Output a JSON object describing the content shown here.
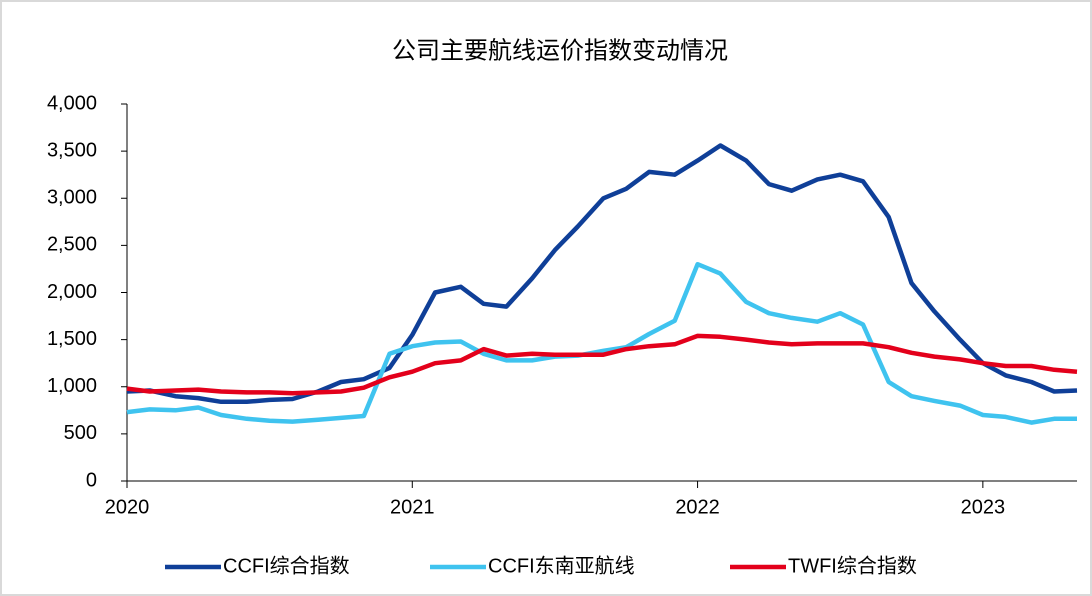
{
  "chart_data": {
    "type": "line",
    "title": "公司主要航线运价指数变动情况",
    "x": [
      2020,
      2020.08,
      2020.17,
      2020.25,
      2020.33,
      2020.42,
      2020.5,
      2020.58,
      2020.67,
      2020.75,
      2020.83,
      2020.92,
      2021,
      2021.08,
      2021.17,
      2021.25,
      2021.33,
      2021.42,
      2021.5,
      2021.58,
      2021.67,
      2021.75,
      2021.83,
      2021.92,
      2022,
      2022.08,
      2022.17,
      2022.25,
      2022.33,
      2022.42,
      2022.5,
      2022.58,
      2022.67,
      2022.75,
      2022.83,
      2022.92,
      2023,
      2023.08,
      2023.17,
      2023.25,
      2023.33
    ],
    "series": [
      {
        "name": "CCFI综合指数",
        "color": "#0f3f98",
        "values": [
          950,
          960,
          900,
          880,
          840,
          840,
          860,
          870,
          950,
          1050,
          1080,
          1200,
          1550,
          2000,
          2060,
          1880,
          1850,
          2150,
          2450,
          2700,
          3000,
          3100,
          3280,
          3250,
          3400,
          3560,
          3400,
          3150,
          3080,
          3200,
          3250,
          3180,
          2800,
          2100,
          1800,
          1500,
          1250,
          1120,
          1050,
          950,
          960
        ]
      },
      {
        "name": "CCFI东南亚航线",
        "color": "#3fc3ef",
        "values": [
          730,
          760,
          750,
          780,
          700,
          660,
          640,
          630,
          650,
          670,
          690,
          1350,
          1430,
          1470,
          1480,
          1350,
          1280,
          1280,
          1320,
          1330,
          1380,
          1420,
          1560,
          1700,
          2300,
          2200,
          1900,
          1780,
          1730,
          1690,
          1780,
          1660,
          1050,
          900,
          850,
          800,
          700,
          680,
          620,
          660,
          660
        ]
      },
      {
        "name": "TWFI综合指数",
        "color": "#e3001b",
        "values": [
          980,
          950,
          960,
          970,
          950,
          940,
          940,
          930,
          940,
          950,
          990,
          1100,
          1160,
          1250,
          1280,
          1400,
          1330,
          1350,
          1340,
          1340,
          1340,
          1400,
          1430,
          1450,
          1540,
          1530,
          1500,
          1470,
          1450,
          1460,
          1460,
          1460,
          1420,
          1360,
          1320,
          1290,
          1250,
          1220,
          1220,
          1180,
          1160
        ]
      }
    ],
    "xlim": [
      2020,
      2023.33
    ],
    "xticks": [
      2020,
      2021,
      2022,
      2023
    ],
    "ylim": [
      0,
      4000
    ],
    "yticks": [
      0,
      500,
      {
        "value": 1000,
        "label": "1,000"
      },
      {
        "value": 1500,
        "label": "1,500"
      },
      {
        "value": 2000,
        "label": "2,000"
      },
      {
        "value": 2500,
        "label": "2,500"
      },
      {
        "value": 3000,
        "label": "3,000"
      },
      {
        "value": 3500,
        "label": "3,500"
      },
      {
        "value": 4000,
        "label": "4,000"
      }
    ],
    "grid": false,
    "legend": "bottom"
  }
}
